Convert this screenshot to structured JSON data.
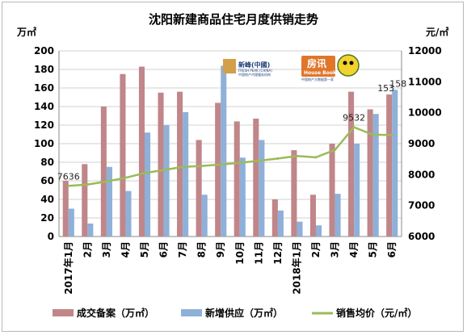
{
  "chart_data": {
    "type": "bar",
    "title": "沈阳新建商品住宅月度供销走势",
    "y_left_unit": "万㎡",
    "y_right_unit": "元/㎡",
    "y_left_lim": [
      0,
      200
    ],
    "y_left_ticks": [
      "0",
      "20",
      "40",
      "60",
      "80",
      "100",
      "120",
      "140",
      "160",
      "180",
      "200"
    ],
    "y_right_lim": [
      6000,
      12000
    ],
    "y_right_ticks": [
      "6000",
      "7000",
      "8000",
      "9000",
      "10000",
      "11000",
      "12000"
    ],
    "grid": true,
    "legend_position": "bottom",
    "categories": [
      "2017年1月",
      "2月",
      "3月",
      "4月",
      "5月",
      "6月",
      "7月",
      "8月",
      "9月",
      "10月",
      "11月",
      "12月",
      "2018年1月",
      "2月",
      "3月",
      "4月",
      "5月",
      "6月"
    ],
    "series": [
      {
        "name": "成交备案（万㎡）",
        "type": "bar",
        "axis": "left",
        "color": "#c0868a",
        "values": [
          60,
          78,
          140,
          175,
          183,
          155,
          156,
          104,
          144,
          124,
          127,
          40,
          93,
          45,
          100,
          156,
          137,
          153
        ]
      },
      {
        "name": "新增供应（万㎡）",
        "type": "bar",
        "axis": "left",
        "color": "#8fb0d8",
        "values": [
          30,
          14,
          75,
          49,
          112,
          120,
          134,
          45,
          184,
          85,
          104,
          28,
          16,
          12,
          46,
          100,
          132,
          158
        ]
      },
      {
        "name": "销售均价（元/㎡）",
        "type": "line",
        "axis": "right",
        "color": "#9bbb59",
        "values": [
          7636,
          7680,
          7780,
          7900,
          8050,
          8150,
          8250,
          8280,
          8330,
          8380,
          8450,
          8520,
          8600,
          8560,
          8800,
          9532,
          9290,
          9280
        ]
      }
    ],
    "data_labels": [
      {
        "text": "7636",
        "series": 2,
        "index": 0
      },
      {
        "text": "9532",
        "series": 2,
        "index": 15
      },
      {
        "text": "153",
        "series": 0,
        "index": 17
      },
      {
        "text": "158",
        "series": 1,
        "index": 17
      }
    ]
  },
  "logos": {
    "logo1_cn": "新峰(中國)",
    "logo1_en": "FRESH PEAK (CHINA)",
    "logo1_sub": "中国地产代理服务机构",
    "logo2_cn": "房讯",
    "logo2_en": "House Book",
    "logo2_sub": "中国地产大数据第一家"
  }
}
